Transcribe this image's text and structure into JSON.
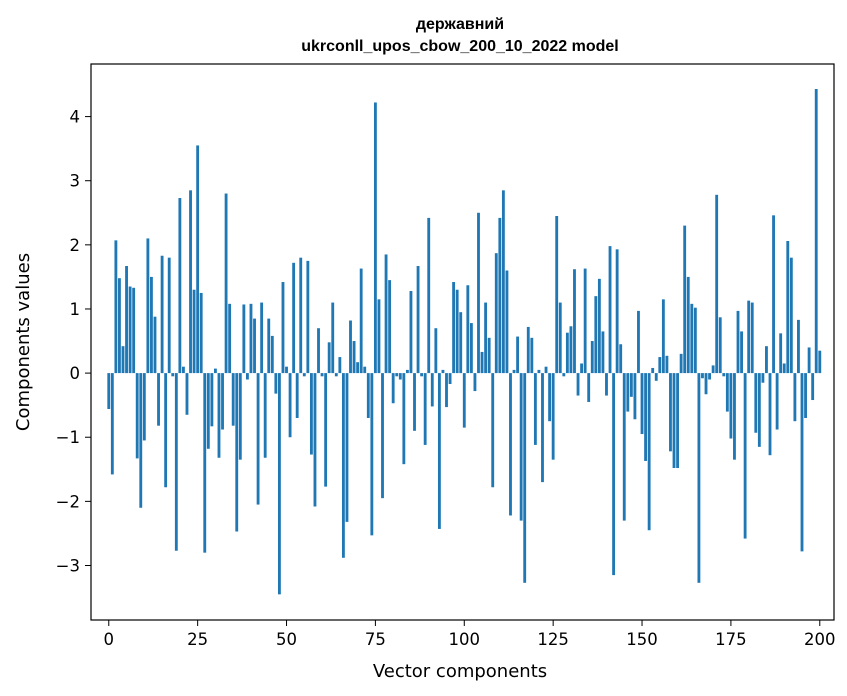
{
  "chart_data": {
    "type": "bar",
    "title_line1": "державний",
    "title_line2": "ukrconll_upos_cbow_200_10_2022 model",
    "xlabel": "Vector components",
    "ylabel": "Components values",
    "xlim": [
      -5,
      204
    ],
    "ylim": [
      -3.85,
      4.82
    ],
    "xticks": [
      0,
      25,
      50,
      75,
      100,
      125,
      150,
      175,
      200
    ],
    "yticks": [
      -3,
      -2,
      -1,
      0,
      1,
      2,
      3,
      4
    ],
    "grid": false,
    "bar_color": "#1f77b4",
    "values": [
      -0.56,
      -1.58,
      2.07,
      1.48,
      0.42,
      1.67,
      1.35,
      1.33,
      -1.33,
      -2.1,
      -1.05,
      2.1,
      1.5,
      0.88,
      -0.82,
      1.83,
      -1.78,
      1.8,
      -0.05,
      -2.77,
      2.73,
      0.1,
      -0.65,
      2.85,
      1.3,
      3.55,
      1.25,
      -2.8,
      -1.18,
      -0.83,
      0.07,
      -1.32,
      -0.88,
      2.8,
      1.08,
      -0.82,
      -2.47,
      -1.35,
      1.07,
      -0.1,
      1.08,
      0.85,
      -2.05,
      1.1,
      -1.32,
      0.85,
      0.58,
      -0.32,
      -3.45,
      1.42,
      0.1,
      -1.0,
      1.72,
      -0.7,
      1.8,
      -0.05,
      1.75,
      -1.27,
      -2.08,
      0.7,
      -0.05,
      -1.77,
      0.48,
      1.1,
      -0.05,
      0.25,
      -2.88,
      -2.32,
      0.82,
      0.5,
      0.17,
      1.63,
      0.1,
      -0.7,
      -2.53,
      4.22,
      1.15,
      -1.95,
      1.85,
      1.45,
      -0.47,
      -0.05,
      -0.1,
      -1.42,
      0.05,
      1.28,
      -0.9,
      1.67,
      -0.05,
      -1.12,
      2.42,
      -0.52,
      0.7,
      -2.43,
      0.05,
      -0.53,
      -0.17,
      1.42,
      1.3,
      0.95,
      -0.85,
      1.37,
      0.78,
      -0.28,
      2.5,
      0.33,
      1.1,
      0.55,
      -1.78,
      1.87,
      2.42,
      2.85,
      1.6,
      -2.22,
      0.05,
      0.57,
      -2.3,
      -3.27,
      0.72,
      0.55,
      -1.12,
      0.05,
      -1.7,
      0.1,
      -0.75,
      -1.35,
      2.45,
      1.1,
      -0.05,
      0.63,
      0.73,
      1.62,
      -0.35,
      0.15,
      1.63,
      -0.45,
      0.5,
      1.2,
      1.47,
      0.65,
      -0.35,
      1.98,
      -3.15,
      1.93,
      0.45,
      -2.3,
      -0.6,
      -0.37,
      -0.72,
      0.97,
      -0.95,
      -1.37,
      -2.45,
      0.08,
      -0.12,
      0.25,
      1.15,
      0.27,
      -1.22,
      -1.48,
      -1.48,
      0.3,
      2.3,
      1.5,
      1.08,
      1.02,
      -3.27,
      -0.08,
      -0.33,
      -0.1,
      0.12,
      2.78,
      0.87,
      -0.05,
      -0.6,
      -1.02,
      -1.35,
      0.97,
      0.65,
      -2.58,
      1.13,
      1.1,
      -0.93,
      -1.15,
      -0.15,
      0.42,
      -1.28,
      2.46,
      -0.88,
      0.62,
      0.15,
      2.06,
      1.8,
      -0.75,
      0.83,
      -2.78,
      -0.7,
      0.4,
      -0.42,
      4.43,
      0.35
    ]
  }
}
